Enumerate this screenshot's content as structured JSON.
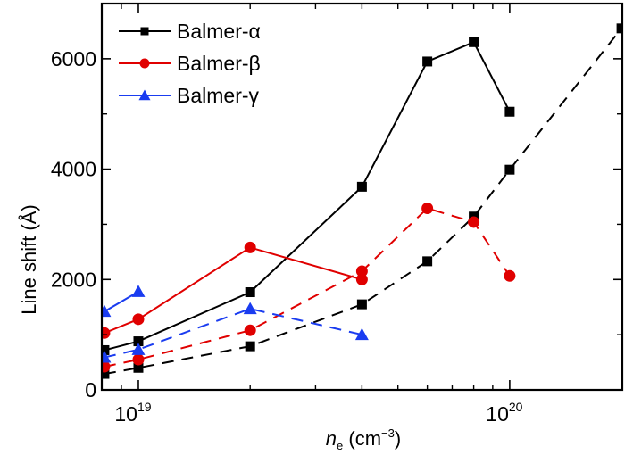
{
  "chart_data": {
    "type": "line",
    "title": "",
    "xlabel": "n_e (cm^-3)",
    "xlabel_main": "n",
    "xlabel_sub": "e",
    "xlabel_unit_open": " (cm",
    "xlabel_unit_sup": "−3",
    "xlabel_unit_close": ")",
    "ylabel": "Line shift (Å)",
    "xscale": "log",
    "xlim": [
      7.97e+18,
      2.01e+20
    ],
    "ylim": [
      0,
      7000
    ],
    "x_ticks": [
      {
        "value": 1e+19,
        "base": "10",
        "exp": "19"
      },
      {
        "value": 1e+20,
        "base": "10",
        "exp": "20"
      }
    ],
    "x_minor_ticks": [
      9e+18,
      2e+19,
      3e+19,
      4e+19,
      5e+19,
      6e+19,
      7e+19,
      8e+19,
      9e+19
    ],
    "y_ticks": [
      0,
      2000,
      4000,
      6000
    ],
    "y_tick_labels": [
      "0",
      "2000",
      "4000",
      "6000"
    ],
    "y_minor_ticks": [
      1000,
      3000,
      5000
    ],
    "grid": false,
    "legend": {
      "position": "top-left",
      "entries": [
        {
          "label": "Balmer-α",
          "color": "#000000",
          "marker": "square"
        },
        {
          "label": "Balmer-β",
          "color": "#e00000",
          "marker": "circle"
        },
        {
          "label": "Balmer-γ",
          "color": "#1a3cf0",
          "marker": "triangle"
        }
      ]
    },
    "series": [
      {
        "name": "Balmer-α (solid)",
        "line": "Balmer-α",
        "style": "solid",
        "color": "#000000",
        "marker": "square",
        "x": [
          8.1e+18,
          1e+19,
          2e+19,
          4e+19,
          6e+19,
          8e+19,
          1e+20
        ],
        "y": [
          720,
          880,
          1770,
          3680,
          5950,
          6300,
          5040
        ]
      },
      {
        "name": "Balmer-α (dashed)",
        "line": "Balmer-α",
        "style": "dashed",
        "color": "#000000",
        "marker": "square",
        "x": [
          8.1e+18,
          1e+19,
          2e+19,
          4e+19,
          6e+19,
          8e+19,
          1e+20,
          2e+20
        ],
        "y": [
          290,
          400,
          790,
          1550,
          2330,
          3140,
          3990,
          6550
        ]
      },
      {
        "name": "Balmer-β (solid)",
        "line": "Balmer-β",
        "style": "solid",
        "color": "#e00000",
        "marker": "circle",
        "x": [
          8.1e+18,
          1e+19,
          2e+19,
          4e+19
        ],
        "y": [
          1030,
          1280,
          2580,
          2000
        ]
      },
      {
        "name": "Balmer-β (dashed)",
        "line": "Balmer-β",
        "style": "dashed",
        "color": "#e00000",
        "marker": "circle",
        "x": [
          8.1e+18,
          1e+19,
          2e+19,
          4e+19,
          6e+19,
          8e+19,
          1e+20
        ],
        "y": [
          420,
          550,
          1080,
          2150,
          3290,
          3040,
          2065
        ]
      },
      {
        "name": "Balmer-γ (solid)",
        "line": "Balmer-γ",
        "style": "solid",
        "color": "#1a3cf0",
        "marker": "triangle",
        "x": [
          8.1e+18,
          1e+19
        ],
        "y": [
          1420,
          1780
        ]
      },
      {
        "name": "Balmer-γ (dashed)",
        "line": "Balmer-γ",
        "style": "dashed",
        "color": "#1a3cf0",
        "marker": "triangle",
        "x": [
          8.1e+18,
          1e+19,
          2e+19,
          4e+19
        ],
        "y": [
          590,
          730,
          1470,
          1000
        ]
      }
    ]
  }
}
